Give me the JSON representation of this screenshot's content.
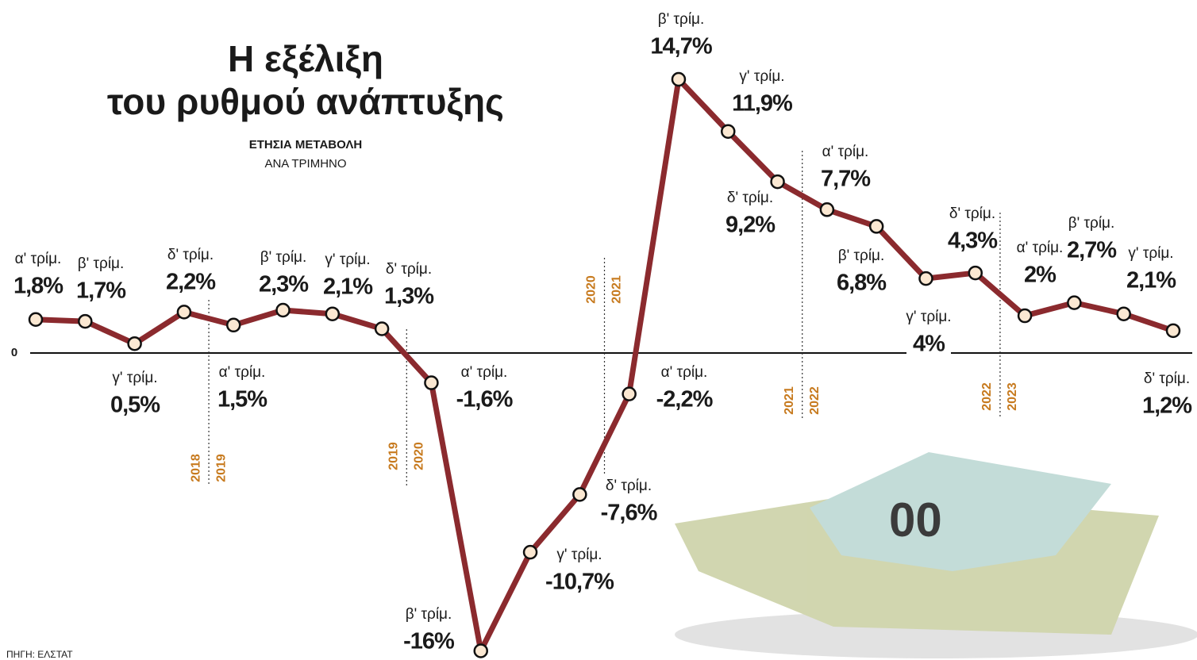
{
  "chart_data": {
    "type": "line",
    "title": "Η εξέλιξη",
    "title_line2": "του ρυθμού ανάπτυξης",
    "subtitle": "ΕΤΗΣΙΑ ΜΕΤΑΒΟΛΗ",
    "subtitle_line2": "ΑΝΑ ΤΡΙΜΗΝΟ",
    "source": "ΠΗΓΗ: ΕΛΣΤΑΤ",
    "categories": [
      "α' τρίμ.",
      "β' τρίμ.",
      "γ' τρίμ.",
      "δ' τρίμ.",
      "α' τρίμ.",
      "β' τρίμ.",
      "γ' τρίμ.",
      "δ' τρίμ.",
      "α' τρίμ.",
      "β' τρίμ.",
      "γ' τρίμ.",
      "δ' τρίμ.",
      "α' τρίμ.",
      "β' τρίμ.",
      "γ' τρίμ.",
      "δ' τρίμ.",
      "α' τρίμ.",
      "β' τρίμ.",
      "γ' τρίμ.",
      "δ' τρίμ.",
      "α' τρίμ.",
      "β' τρίμ.",
      "γ' τρίμ.",
      "δ' τρίμ."
    ],
    "values": [
      1.8,
      1.7,
      0.5,
      2.2,
      1.5,
      2.3,
      2.1,
      1.3,
      -1.6,
      -16,
      -10.7,
      -7.6,
      -2.2,
      14.7,
      11.9,
      9.2,
      7.7,
      6.8,
      4,
      4.3,
      2,
      2.7,
      2.1,
      1.2
    ],
    "value_labels": [
      "1,8%",
      "1,7%",
      "0,5%",
      "2,2%",
      "1,5%",
      "2,3%",
      "2,1%",
      "1,3%",
      "-1,6%",
      "-16%",
      "-10,7%",
      "-7,6%",
      "-2,2%",
      "14,7%",
      "11,9%",
      "9,2%",
      "7,7%",
      "6,8%",
      "4%",
      "4,3%",
      "2%",
      "2,7%",
      "2,1%",
      "1,2%"
    ],
    "year_dividers": [
      [
        "2018",
        "2019"
      ],
      [
        "2019",
        "2020"
      ],
      [
        "2020",
        "2021"
      ],
      [
        "2021",
        "2022"
      ],
      [
        "2022",
        "2023"
      ]
    ],
    "color": "#8b2a2e",
    "marker_color": "#fbe8d2",
    "year_color": "#c77a1e",
    "ylim": [
      -16.3,
      16
    ],
    "yticks": [
      0
    ],
    "grid": false
  }
}
